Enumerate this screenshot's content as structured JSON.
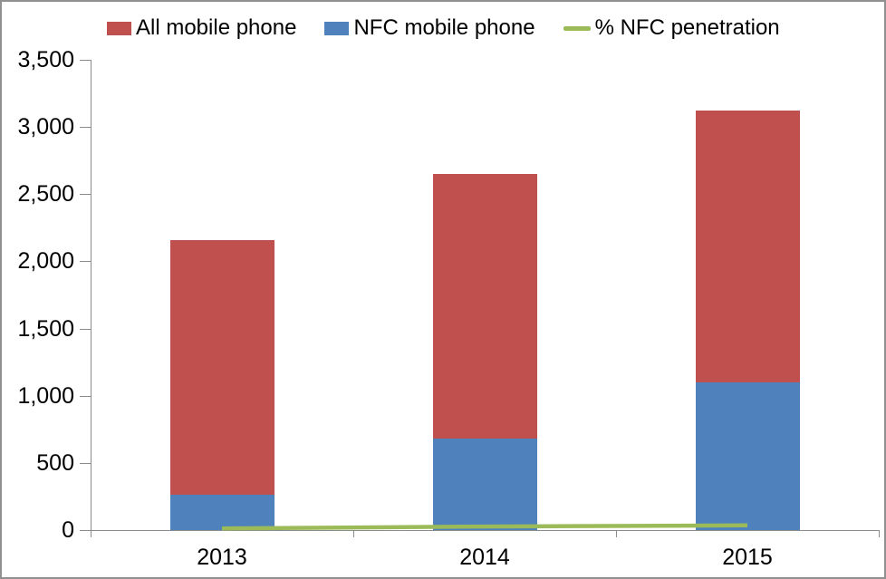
{
  "chart_data": {
    "type": "bar",
    "subtype": "stacked_column_with_line",
    "title": "",
    "categories": [
      "2013",
      "2014",
      "2015"
    ],
    "series": [
      {
        "name": "All mobile phone",
        "color": "#BF504D",
        "stack_position": "top",
        "values": [
          1900,
          1970,
          2020
        ]
      },
      {
        "name": "NFC mobile phone",
        "color": "#4F81BD",
        "stack_position": "bottom",
        "values": [
          260,
          680,
          1100
        ]
      }
    ],
    "stack_totals": [
      2160,
      2650,
      3120
    ],
    "line_series": {
      "name": "% NFC penetration",
      "color": "#9BBB59",
      "values": [
        12,
        26,
        35
      ]
    },
    "xlabel": "",
    "ylabel": "",
    "ylim": [
      0,
      3500
    ],
    "ytick_step": 500,
    "ytick_labels": [
      "0",
      "500",
      "1,000",
      "1,500",
      "2,000",
      "2,500",
      "3,000",
      "3,500"
    ],
    "legend_position": "top",
    "grid": false,
    "axis_color": "#8C8C8C",
    "label_color": "#000000"
  },
  "legend": {
    "items": [
      {
        "label": "All mobile phone",
        "color": "#BF504D",
        "marker": "square"
      },
      {
        "label": "NFC mobile phone",
        "color": "#4F81BD",
        "marker": "square"
      },
      {
        "label": "% NFC penetration",
        "color": "#9BBB59",
        "marker": "line"
      }
    ]
  }
}
